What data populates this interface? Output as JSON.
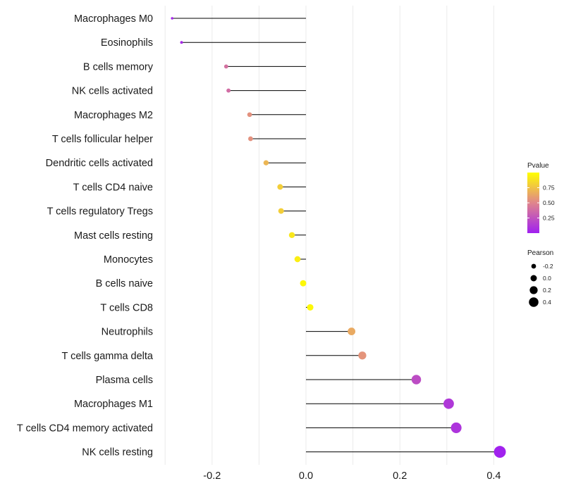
{
  "chart_data": {
    "type": "lollipop",
    "title": "",
    "xlabel": "",
    "ylabel": "",
    "xlim": [
      -0.3,
      0.42
    ],
    "xticks": [
      "-0.2",
      "0.0",
      "0.2",
      "0.4"
    ],
    "xtick_values": [
      -0.2,
      0.0,
      0.2,
      0.4
    ],
    "grid": true,
    "categories": [
      "Macrophages M0",
      "Eosinophils",
      "B cells memory",
      "NK cells activated",
      "Macrophages M2",
      "T cells follicular helper",
      "Dendritic cells activated",
      "T cells CD4 naive",
      "T cells regulatory  Tregs",
      "Mast cells resting",
      "Monocytes",
      "B cells naive",
      "T cells CD8",
      "Neutrophils",
      "T cells gamma delta",
      "Plasma cells",
      "Macrophages M1",
      "T cells CD4 memory activated",
      "NK cells resting"
    ],
    "pearson": [
      -0.285,
      -0.265,
      -0.17,
      -0.165,
      -0.12,
      -0.118,
      -0.085,
      -0.055,
      -0.053,
      -0.03,
      -0.018,
      -0.006,
      0.009,
      0.097,
      0.12,
      0.235,
      0.304,
      0.32,
      0.413
    ],
    "pvalue": [
      0.03,
      0.05,
      0.4,
      0.38,
      0.55,
      0.55,
      0.7,
      0.8,
      0.8,
      0.9,
      0.93,
      0.97,
      0.97,
      0.65,
      0.56,
      0.22,
      0.12,
      0.1,
      0.01
    ],
    "legend": {
      "color_title": "Pvalue",
      "color_ticks": [
        "0.25",
        "0.50",
        "0.75"
      ],
      "color_tick_values": [
        0.25,
        0.5,
        0.75
      ],
      "color_range": [
        0.0,
        1.0
      ],
      "size_title": "Pearson",
      "size_ticks": [
        "-0.2",
        "0.0",
        "0.2",
        "0.4"
      ],
      "size_tick_values": [
        -0.2,
        0.0,
        0.2,
        0.4
      ],
      "position": "right"
    },
    "colors": {
      "low": "#a020f0",
      "mid": "#e0858c",
      "high": "#ffff00",
      "stem": "#000000",
      "grid": "#ebebeb",
      "size_legend": "#000000"
    }
  }
}
